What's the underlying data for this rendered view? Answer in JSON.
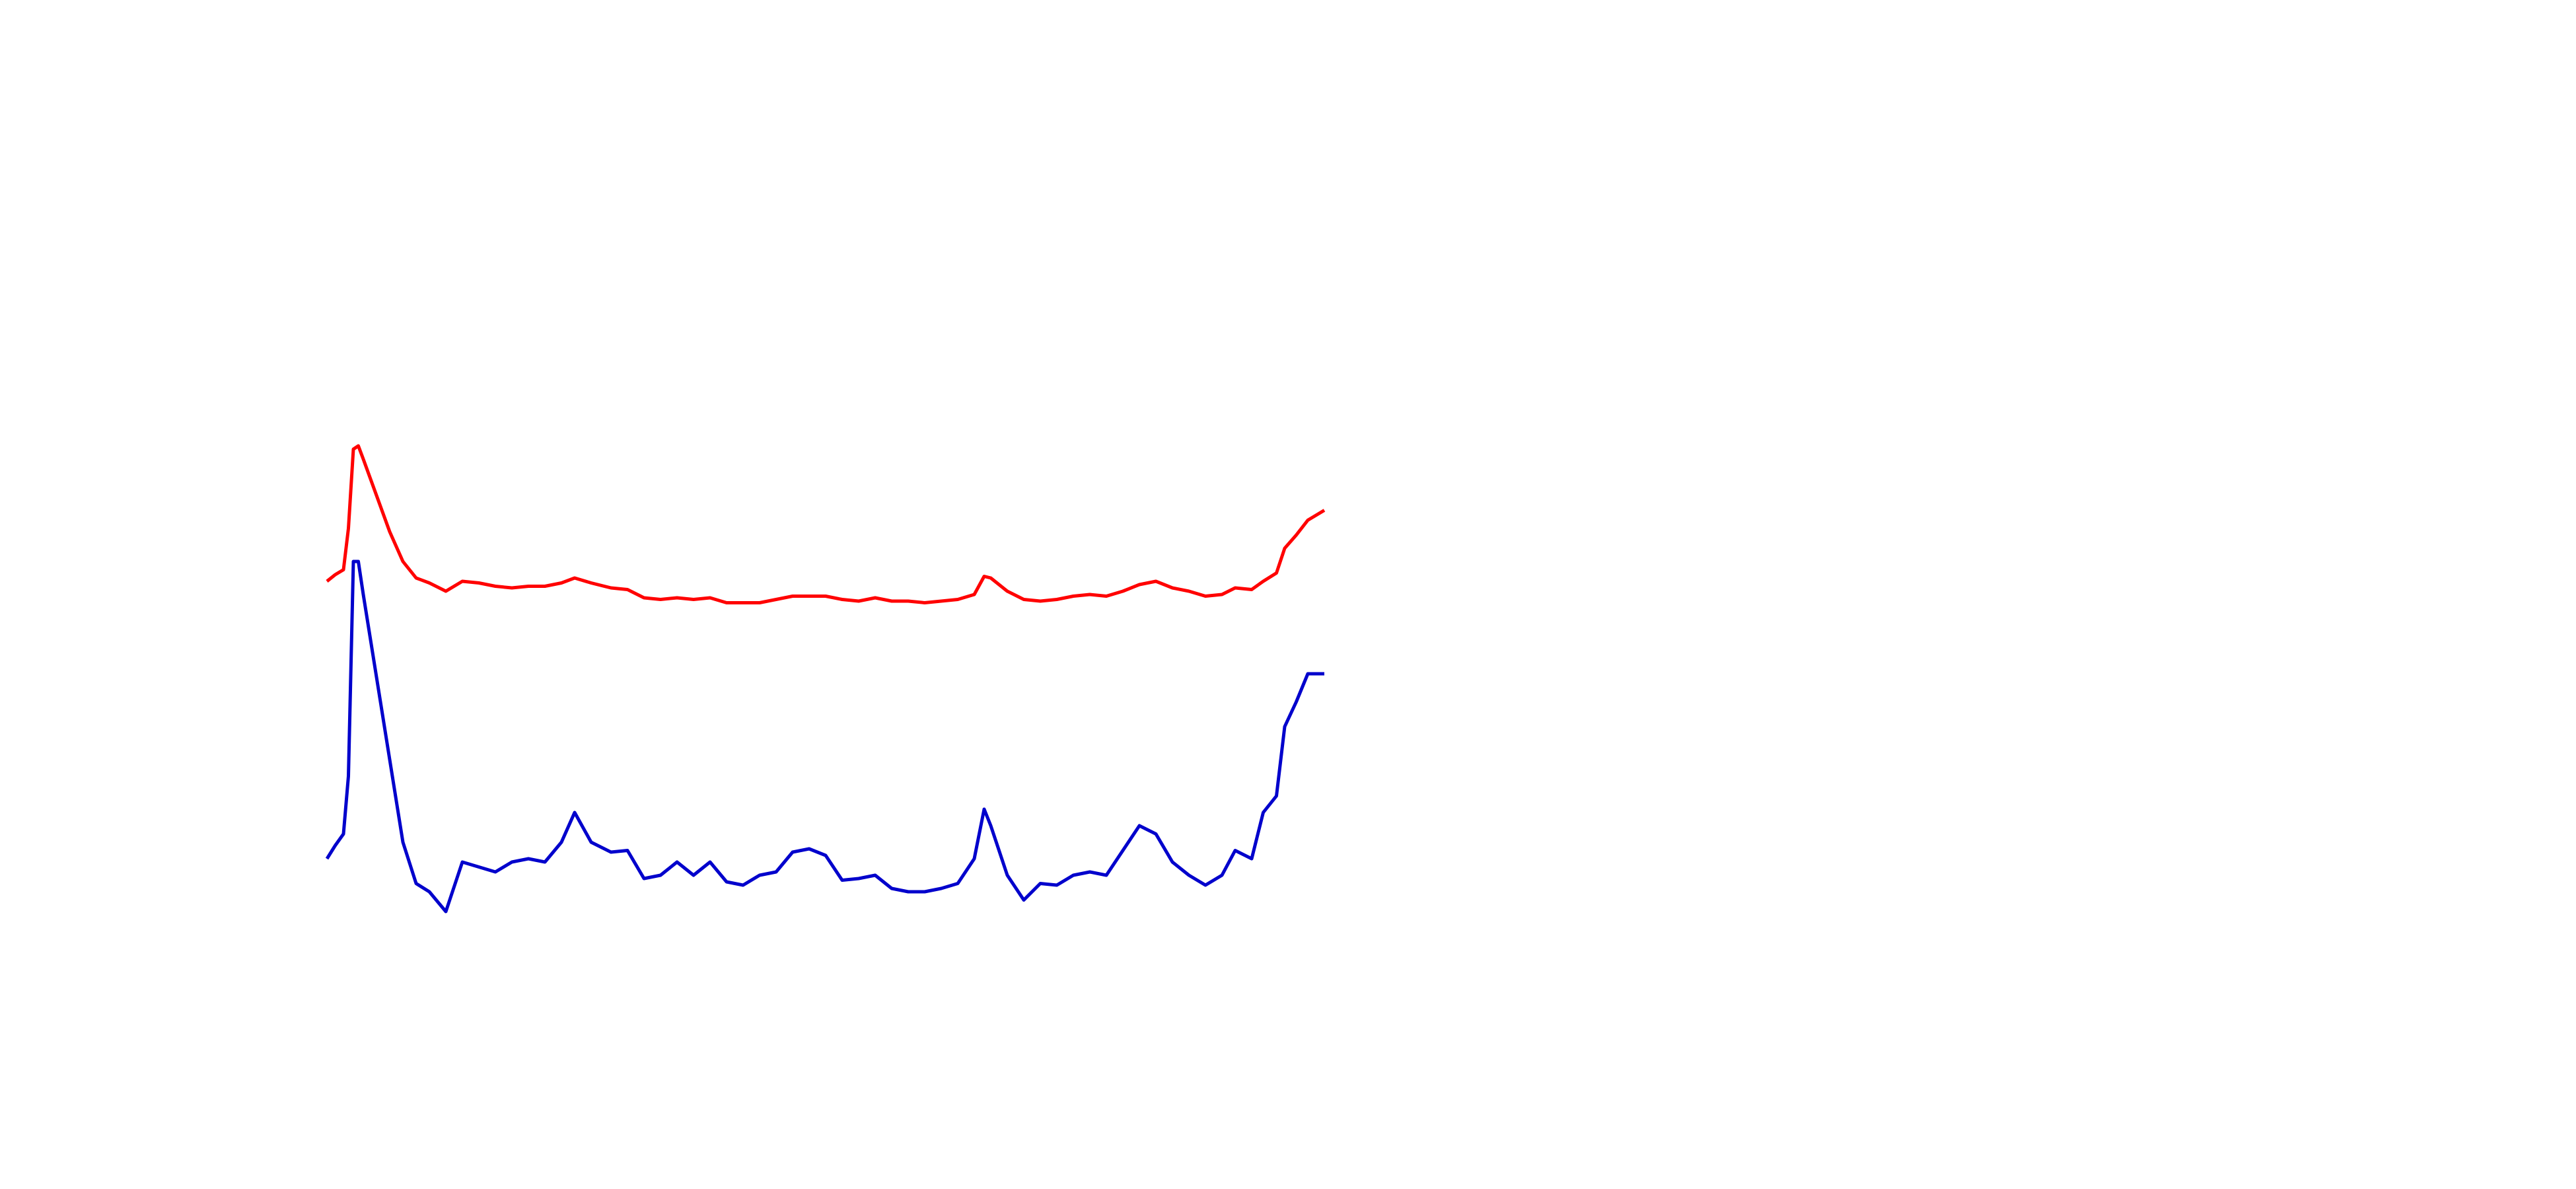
{
  "chart_data": {
    "type": "line",
    "xlim": [
      0,
      1560
    ],
    "ylim": [
      0,
      720
    ],
    "x": [
      198,
      203,
      208,
      211,
      214,
      217,
      220,
      228,
      236,
      244,
      252,
      260,
      270,
      280,
      290,
      300,
      310,
      320,
      330,
      340,
      348,
      358,
      370,
      380,
      390,
      400,
      410,
      420,
      430,
      440,
      450,
      460,
      470,
      480,
      490,
      500,
      510,
      520,
      530,
      540,
      550,
      560,
      570,
      580,
      590,
      596,
      600,
      610,
      620,
      630,
      640,
      650,
      660,
      670,
      680,
      690,
      700,
      710,
      720,
      730,
      740,
      748,
      758,
      765,
      773,
      778,
      785,
      792,
      802
    ],
    "series": [
      {
        "color": "#ff0000",
        "values": [
          368,
          372,
          375,
          400,
          448,
          450,
          442,
          420,
          398,
          380,
          370,
          367,
          362,
          368,
          367,
          365,
          364,
          365,
          365,
          367,
          370,
          367,
          364,
          363,
          358,
          357,
          358,
          357,
          358,
          355,
          355,
          355,
          357,
          359,
          359,
          359,
          357,
          356,
          358,
          356,
          356,
          355,
          356,
          357,
          360,
          371,
          370,
          362,
          357,
          356,
          357,
          359,
          360,
          359,
          362,
          366,
          368,
          364,
          362,
          359,
          360,
          364,
          363,
          368,
          373,
          388,
          396,
          405,
          411
        ]
      },
      {
        "color": "#0000cc",
        "values": [
          200,
          208,
          215,
          250,
          380,
          380,
          360,
          310,
          260,
          210,
          185,
          180,
          168,
          198,
          195,
          192,
          198,
          200,
          198,
          210,
          228,
          210,
          204,
          205,
          188,
          190,
          198,
          190,
          198,
          186,
          184,
          190,
          192,
          204,
          206,
          202,
          187,
          188,
          190,
          182,
          180,
          180,
          182,
          185,
          200,
          230,
          220,
          190,
          175,
          185,
          184,
          190,
          192,
          190,
          205,
          220,
          215,
          198,
          190,
          184,
          190,
          205,
          200,
          228,
          238,
          280,
          295,
          312,
          312
        ]
      }
    ]
  }
}
